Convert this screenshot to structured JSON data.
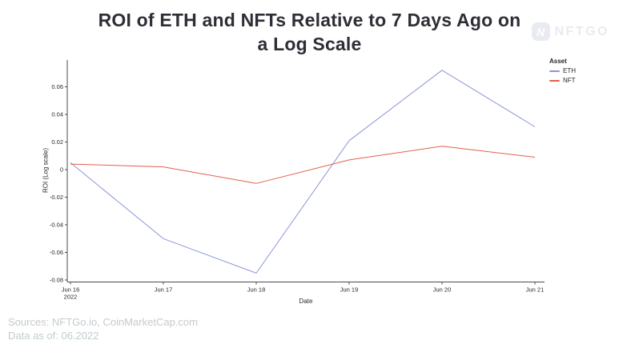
{
  "header": {
    "title_line1": "ROI of ETH and NFTs Relative to 7 Days Ago on",
    "title_line2": "a Log Scale"
  },
  "logo": {
    "mark": "N",
    "text": "NFTGO"
  },
  "footer": {
    "sources": "Sources: NFTGo.io, CoinMarketCap.com",
    "data_as_of": "Data as of: 06.2022"
  },
  "chart_data": {
    "type": "line",
    "title": "ROI of ETH and NFTs Relative to 7 Days Ago on a Log Scale",
    "xlabel": "Date",
    "ylabel": "ROI (Log scale)",
    "legend_title": "Asset",
    "legend_position": "top-right",
    "grid": false,
    "categories": [
      "Jun 16",
      "Jun 17",
      "Jun 18",
      "Jun 19",
      "Jun 20",
      "Jun 21"
    ],
    "first_tick_year": "2022",
    "series": [
      {
        "name": "ETH",
        "color": "#8b94d9",
        "values": [
          0.005,
          -0.05,
          -0.075,
          0.021,
          0.072,
          0.031
        ]
      },
      {
        "name": "NFT",
        "color": "#e2604e",
        "values": [
          0.004,
          0.002,
          -0.01,
          0.007,
          0.017,
          0.009
        ]
      }
    ],
    "yticks": [
      0.06,
      0.04,
      0.02,
      0,
      -0.02,
      -0.04,
      -0.06,
      -0.08
    ],
    "ylim": [
      -0.081,
      0.079
    ],
    "axis_color": "#4a4c52",
    "tick_color": "#26262b"
  }
}
